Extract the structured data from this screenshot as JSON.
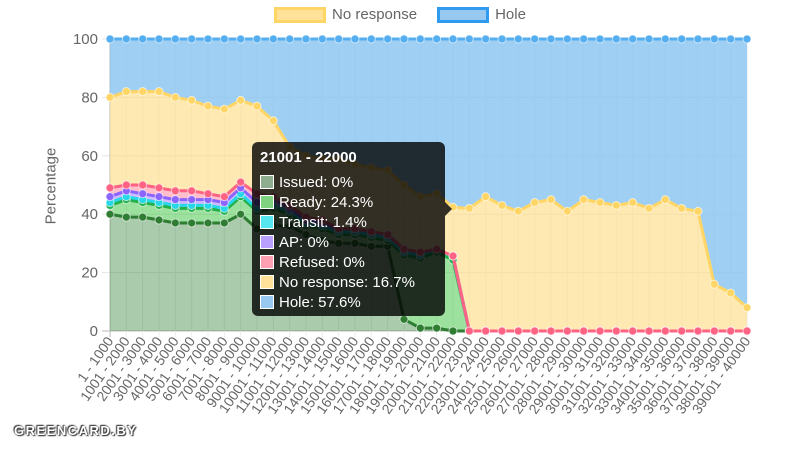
{
  "chart_data": {
    "type": "area",
    "ylabel": "Percentage",
    "ylim": [
      0,
      100
    ],
    "yticks": [
      0,
      20,
      40,
      60,
      80,
      100
    ],
    "grid": true,
    "legend_position": "top",
    "categories": [
      "1 - 1000",
      "1001 - 2000",
      "2001 - 3000",
      "3001 - 4000",
      "4001 - 5000",
      "5001 - 6000",
      "6001 - 7000",
      "7001 - 8000",
      "8001 - 9000",
      "9001 - 10000",
      "10001 - 11000",
      "11001 - 12000",
      "12001 - 13000",
      "13001 - 14000",
      "14001 - 15000",
      "15001 - 16000",
      "16001 - 17000",
      "17001 - 18000",
      "18001 - 19000",
      "19001 - 20000",
      "20001 - 21000",
      "21001 - 22000",
      "22001 - 23000",
      "23001 - 24000",
      "24001 - 25000",
      "25001 - 26000",
      "26001 - 27000",
      "27001 - 28000",
      "28001 - 29000",
      "29001 - 30000",
      "30001 - 31000",
      "31001 - 32000",
      "32001 - 33000",
      "33001 - 34000",
      "34001 - 35000",
      "35001 - 36000",
      "36001 - 37000",
      "37001 - 38000",
      "38001 - 39000",
      "39001 - 40000"
    ],
    "series": [
      {
        "name": "Issued",
        "fill": "rgba(46,125,50,0.4)",
        "stroke": "#2e7d32",
        "values": [
          40,
          39,
          39,
          38,
          37,
          37,
          37,
          37,
          40,
          35,
          36,
          36,
          33,
          31,
          30,
          30,
          29,
          29,
          4,
          1,
          1,
          0,
          0,
          0,
          0,
          0,
          0,
          0,
          0,
          0,
          0,
          0,
          0,
          0,
          0,
          0,
          0,
          0,
          0,
          0
        ]
      },
      {
        "name": "Ready",
        "fill": "rgba(76,200,80,0.55)",
        "stroke": "#22b14c",
        "values": [
          3,
          6,
          5,
          5,
          5,
          5,
          5,
          4,
          6,
          6,
          6,
          4,
          3,
          4,
          3,
          3,
          3,
          2,
          22,
          24,
          26,
          24.3,
          0,
          0,
          0,
          0,
          0,
          0,
          0,
          0,
          0,
          0,
          0,
          0,
          0,
          0,
          0,
          0,
          0,
          0
        ]
      },
      {
        "name": "Transit",
        "fill": "rgba(0,230,230,0.45)",
        "stroke": "#26d7e8",
        "values": [
          1,
          1,
          1,
          1,
          1,
          1,
          1,
          1,
          1,
          1,
          1,
          1,
          1,
          1,
          1,
          1,
          1,
          1,
          1,
          1,
          1,
          1.4,
          0,
          0,
          0,
          0,
          0,
          0,
          0,
          0,
          0,
          0,
          0,
          0,
          0,
          0,
          0,
          0,
          0,
          0
        ]
      },
      {
        "name": "AP",
        "fill": "rgba(160,120,255,0.5)",
        "stroke": "#8c64ff",
        "values": [
          2,
          2,
          2,
          2,
          2,
          2,
          2,
          2,
          2,
          2,
          2,
          1,
          1,
          1,
          1,
          1,
          1,
          1,
          1,
          1,
          0,
          0,
          0,
          0,
          0,
          0,
          0,
          0,
          0,
          0,
          0,
          0,
          0,
          0,
          0,
          0,
          0,
          0,
          0,
          0
        ]
      },
      {
        "name": "Refused",
        "fill": "rgba(255,110,140,0.45)",
        "stroke": "#ff6384",
        "values": [
          3,
          2,
          3,
          3,
          3,
          3,
          2,
          2,
          2,
          3,
          1,
          1,
          1,
          1,
          0,
          0,
          0,
          0,
          0,
          0,
          0,
          0,
          0,
          0,
          0,
          0,
          0,
          0,
          0,
          0,
          0,
          0,
          0,
          0,
          0,
          0,
          0,
          0,
          0,
          0
        ]
      },
      {
        "name": "No response",
        "fill": "rgba(255,221,136,0.65)",
        "stroke": "#ffd666",
        "values": [
          31,
          32,
          32,
          33,
          32,
          31,
          30,
          30,
          28,
          30,
          26,
          20,
          21,
          21,
          24,
          22,
          22,
          22,
          22,
          19,
          19,
          16.7,
          42,
          46,
          43,
          41,
          44,
          45,
          41,
          45,
          44,
          43,
          44,
          42,
          45,
          42,
          41,
          16,
          13,
          8
        ]
      },
      {
        "name": "Hole",
        "fill": "rgba(135,195,240,0.8)",
        "stroke": "#54aef0",
        "values": [
          20,
          18,
          18,
          18,
          20,
          21,
          23,
          24,
          21,
          23,
          28,
          37,
          40,
          41,
          41,
          43,
          44,
          45,
          50,
          54,
          53,
          57.6,
          58,
          54,
          57,
          59,
          56,
          55,
          59,
          55,
          56,
          57,
          56,
          58,
          55,
          58,
          59,
          84,
          87,
          92
        ]
      }
    ],
    "legend": [
      {
        "name": "No response",
        "fill": "#ffe19a",
        "stroke": "#ffd666"
      },
      {
        "name": "Hole",
        "fill": "#96c8f0",
        "stroke": "#2f9bee"
      }
    ],
    "tooltip": {
      "title": "21001 - 22000",
      "rows": [
        {
          "text": "Issued: 0%",
          "color": "#8fae90"
        },
        {
          "text": "Ready: 24.3%",
          "color": "#7fd27f"
        },
        {
          "text": "Transit: 1.4%",
          "color": "#55e6f0"
        },
        {
          "text": "AP: 0%",
          "color": "#b9a0ff"
        },
        {
          "text": "Refused: 0%",
          "color": "#ff9fb2"
        },
        {
          "text": "No response: 16.7%",
          "color": "#ffe19a"
        },
        {
          "text": "Hole: 57.6%",
          "color": "#96c8f0"
        }
      ]
    }
  },
  "watermark": "GREENCARD.BY"
}
